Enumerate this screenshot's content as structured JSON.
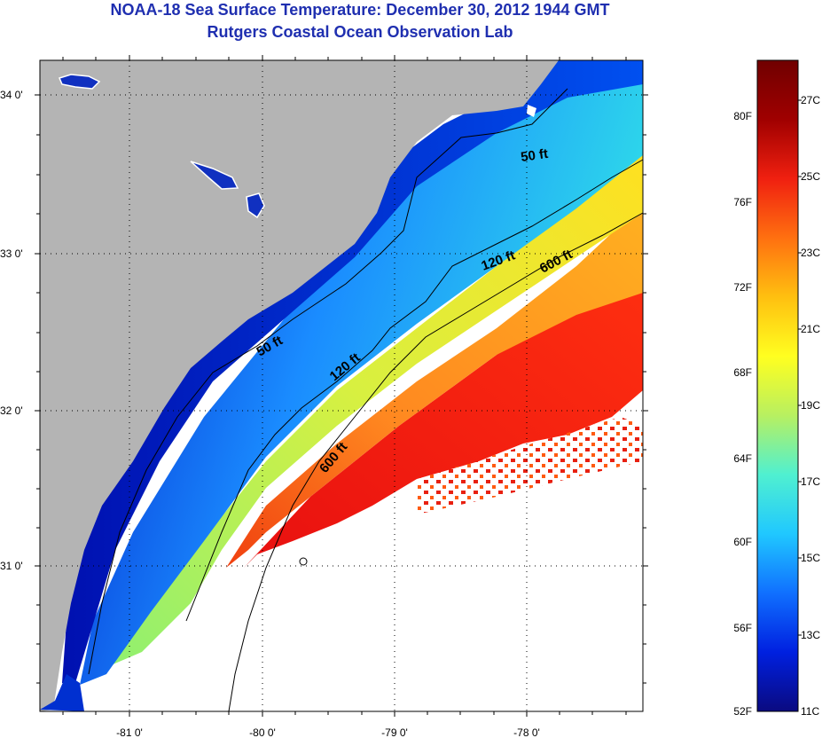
{
  "header": {
    "title": "NOAA-18 Sea Surface Temperature:  December 30, 2012 1944 GMT",
    "subtitle": "Rutgers Coastal Ocean Observation Lab"
  },
  "map": {
    "lat_labels": [
      "34 0'",
      "33 0'",
      "32 0'",
      "31 0'"
    ],
    "lon_labels": [
      "-81 0'",
      "-80 0'",
      "-79 0'",
      "-78 0'"
    ],
    "contour_labels": [
      "50 ft",
      "50 ft",
      "120 ft",
      "120 ft",
      "600 ft",
      "600 ft"
    ],
    "colors": {
      "land": "#b4b4b4",
      "cloud": "#ffffff",
      "contour": "#000000"
    }
  },
  "colorbar": {
    "fahrenheit_labels": [
      "80F",
      "76F",
      "72F",
      "68F",
      "64F",
      "60F",
      "56F",
      "52F"
    ],
    "celsius_labels": [
      "27C",
      "25C",
      "23C",
      "21C",
      "19C",
      "17C",
      "15C",
      "13C",
      "11C"
    ],
    "gradient_stops": [
      "#0a0a80",
      "#0020e0",
      "#1070ff",
      "#20c8ff",
      "#50f0d0",
      "#b8f060",
      "#ffff20",
      "#ffc010",
      "#ff7010",
      "#f02010",
      "#a00000",
      "#700000"
    ]
  }
}
